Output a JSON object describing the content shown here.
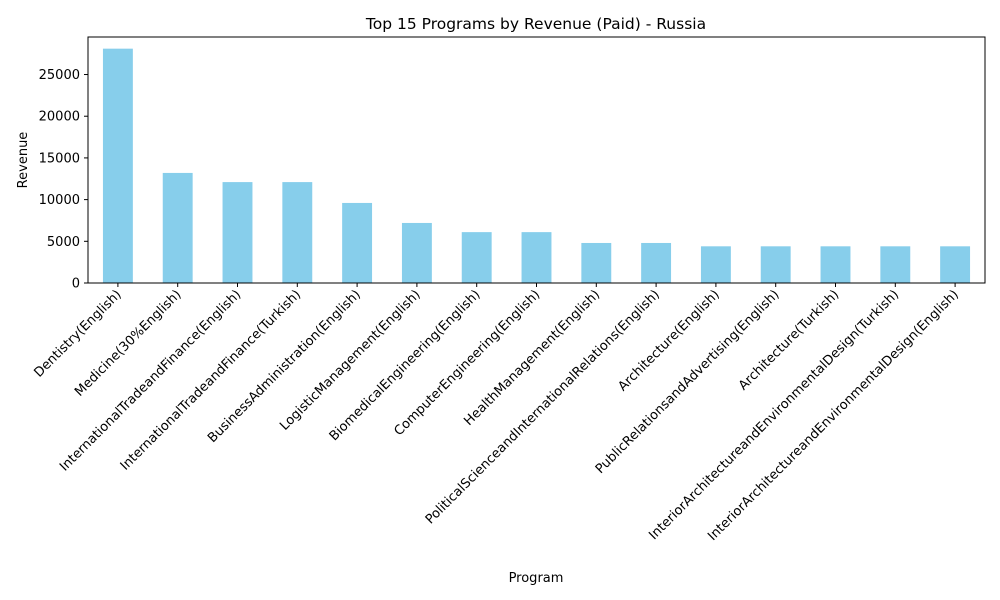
{
  "chart_data": {
    "type": "bar",
    "title": "Top 15 Programs by Revenue (Paid) - Russia",
    "xlabel": "Program",
    "ylabel": "Revenue",
    "ylim": [
      0,
      29500
    ],
    "yticks": [
      0,
      5000,
      10000,
      15000,
      20000,
      25000
    ],
    "grid": false,
    "legend": "none",
    "bar_color": "#87CEEB",
    "categories": [
      "Dentistry(English)",
      "Medicine(30%English)",
      "InternationalTradeandFinance(English)",
      "InternationalTradeandFinance(Turkish)",
      "BusinessAdministration(English)",
      "LogisticManagement(English)",
      "BiomedicalEngineering(English)",
      "ComputerEngineering(English)",
      "HealthManagement(English)",
      "PoliticalScienceandInternationalRelations(English)",
      "Architecture(English)",
      "PublicRelationsandAdvertising(English)",
      "Architecture(Turkish)",
      "InteriorArchitectureandEnvironmentalDesign(Turkish)",
      "InteriorArchitectureandEnvironmentalDesign(English)"
    ],
    "values": [
      28100,
      13200,
      12100,
      12100,
      9600,
      7200,
      6100,
      6100,
      4800,
      4800,
      4400,
      4400,
      4400,
      4400,
      4400
    ]
  }
}
